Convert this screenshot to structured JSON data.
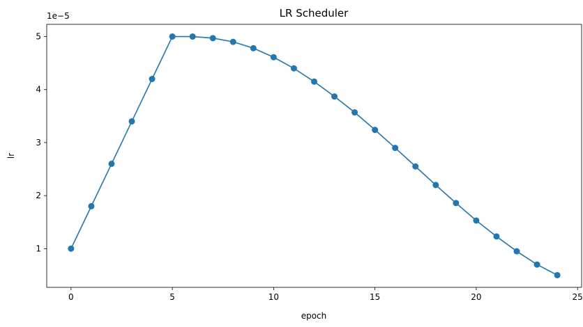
{
  "chart_data": {
    "type": "line",
    "title": "LR Scheduler",
    "xlabel": "epoch",
    "ylabel": "lr",
    "y_offset_text": "1e−5",
    "xlim": [
      -1.2,
      25.2
    ],
    "ylim": [
      0.27,
      5.23
    ],
    "x_ticks": [
      0,
      5,
      10,
      15,
      20,
      25
    ],
    "y_ticks": [
      1,
      2,
      3,
      4,
      5
    ],
    "grid": false,
    "marker": "circle",
    "color": "#1f77b4",
    "series": [
      {
        "x": [
          0,
          1,
          2,
          3,
          4,
          5,
          6,
          7,
          8,
          9,
          10,
          11,
          12,
          13,
          14,
          15,
          16,
          17,
          18,
          19,
          20,
          21,
          22,
          23,
          24
        ],
        "values": [
          1.0,
          1.8,
          2.6,
          3.4,
          4.2,
          5.0,
          5.0,
          4.97,
          4.9,
          4.78,
          4.61,
          4.4,
          4.15,
          3.87,
          3.57,
          3.24,
          2.9,
          2.55,
          2.2,
          1.86,
          1.53,
          1.23,
          0.95,
          0.7,
          0.5
        ]
      }
    ]
  }
}
